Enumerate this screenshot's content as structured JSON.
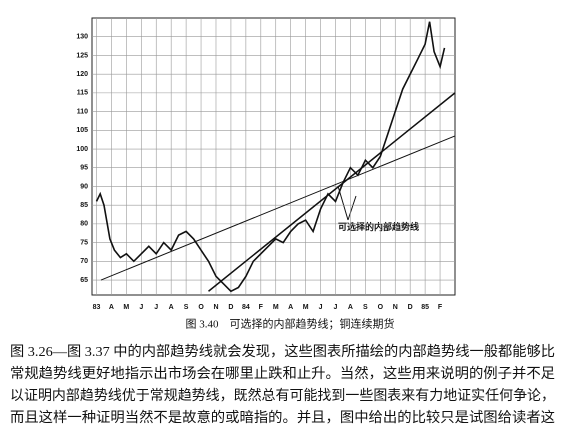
{
  "chart_data": {
    "type": "line",
    "categories": [
      "83",
      "A",
      "M",
      "J",
      "J",
      "A",
      "S",
      "O",
      "N",
      "D",
      "84",
      "F",
      "M",
      "A",
      "M",
      "J",
      "J",
      "A",
      "S",
      "O",
      "N",
      "D",
      "85",
      "F"
    ],
    "x": [
      0,
      0.25,
      0.5,
      0.9,
      1.2,
      1.6,
      2,
      2.5,
      3,
      3.5,
      4,
      4.5,
      5,
      5.5,
      6,
      6.5,
      7,
      7.5,
      8,
      8.5,
      9,
      9.5,
      10,
      10.5,
      11,
      11.5,
      12,
      12.5,
      13,
      13.5,
      14,
      14.5,
      15,
      15.5,
      16,
      16.5,
      17,
      17.5,
      18,
      18.5,
      19,
      19.5,
      20,
      20.5,
      21,
      21.5,
      22,
      22.3,
      22.6,
      23,
      23.3
    ],
    "values": [
      86,
      88,
      85,
      76,
      73,
      71,
      72,
      70,
      72,
      74,
      72,
      75,
      73,
      77,
      78,
      76,
      73,
      70,
      66,
      64,
      62,
      63,
      66,
      70,
      72,
      74,
      76,
      75,
      78,
      80,
      81,
      78,
      84,
      88,
      86,
      91,
      95,
      93,
      97,
      95,
      98,
      104,
      110,
      116,
      120,
      124,
      128,
      134,
      126,
      122,
      127
    ],
    "color": "#111111",
    "xlim": [
      -0.3,
      24
    ],
    "ylim": [
      61,
      135
    ],
    "yticks": [
      65,
      70,
      75,
      80,
      85,
      90,
      95,
      100,
      105,
      110,
      115,
      120,
      125,
      130
    ],
    "grid": true,
    "trendlines": [
      {
        "x": [
          7.5,
          24
        ],
        "values": [
          62,
          115
        ]
      },
      {
        "x": [
          0.3,
          24
        ],
        "values": [
          65,
          103.5
        ]
      }
    ],
    "annotation": "可选择的内部趋势线",
    "caption": "图 3.40　可选择的内部趋势线；铜连续期货"
  },
  "body": {
    "lines": [
      "图 3.26—图 3.37 中的内部趋势线就会发现，这些图表所描绘的内部趋势线一般都能够比",
      "常规趋势线更好地指示出市场会在哪里止跌和止升。当然，这些用来说明的例子并不足",
      "以证明内部趋势线优于常规趋势线，既然总有可能找到一些图表来有力地证实任何争论，",
      "而且这样一种证明当然不是故意的或暗指的。并且，图中给出的比较只是试图给读者这"
    ]
  }
}
